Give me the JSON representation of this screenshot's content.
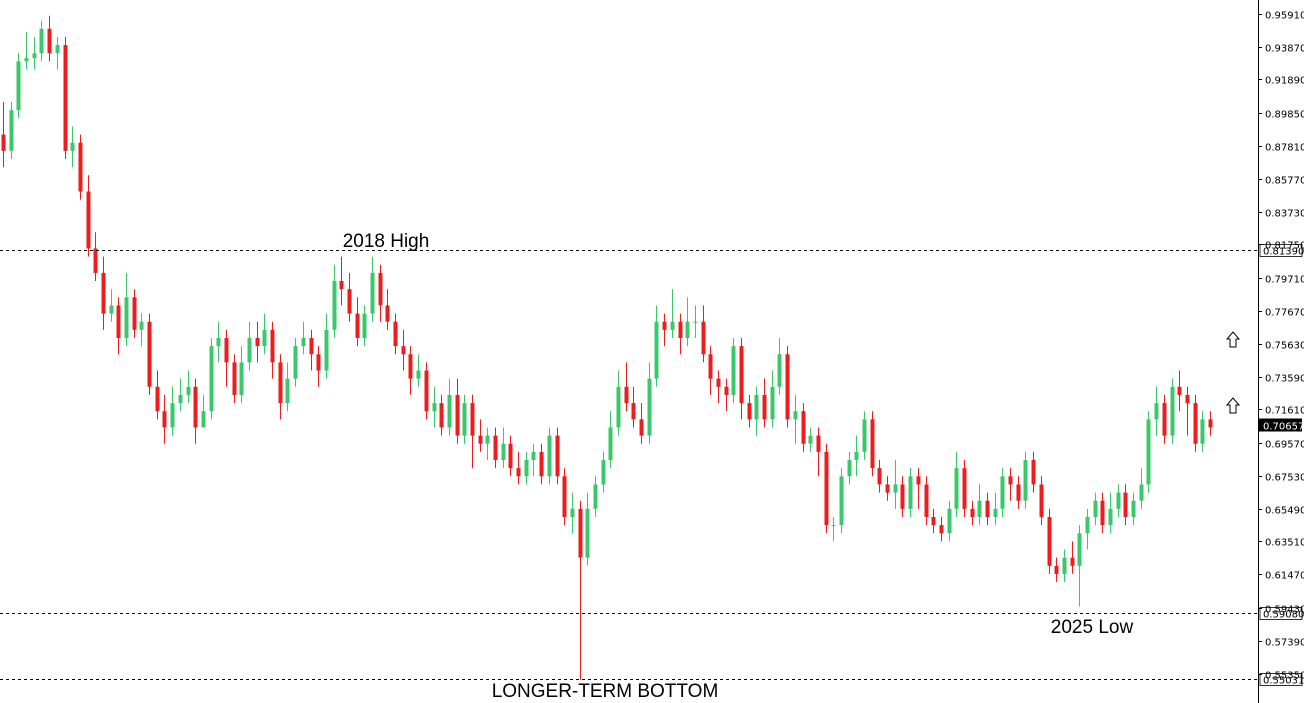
{
  "chart_data": {
    "type": "candlestick",
    "title": "",
    "xlabel": "",
    "ylabel": "",
    "ylim": [
      0.5475,
      0.963
    ],
    "grid": false,
    "y_ticks": [
      "0.95910",
      "0.93870",
      "0.91890",
      "0.89850",
      "0.87810",
      "0.85770",
      "0.83730",
      "0.81750",
      "0.79710",
      "0.77670",
      "0.75630",
      "0.73590",
      "0.71610",
      "0.69570",
      "0.67530",
      "0.65490",
      "0.63510",
      "0.61470",
      "0.59430",
      "0.57390",
      "0.55350"
    ],
    "levels": [
      {
        "name": "2018 High",
        "value": "0.81390",
        "price": 0.8139
      },
      {
        "name": "2025 Low",
        "value": "0.59080",
        "price": 0.5908
      },
      {
        "name": "LONGER-TERM BOTTOM",
        "value": "0.55031",
        "price": 0.55031
      }
    ],
    "current_price": {
      "value": "0.70657",
      "price": 0.70657
    },
    "annotations": [
      "2018 High",
      "2025 Low",
      "LONGER-TERM BOTTOM"
    ],
    "colors": {
      "up": "#3ac96a",
      "down": "#ee1c1c",
      "current_bg": "#000000",
      "current_fg": "#ffffff"
    },
    "icons": [
      "up-arrow-icon",
      "up-arrow-icon"
    ],
    "candles": [
      [
        0.885,
        0.875,
        0.905,
        0.865
      ],
      [
        0.875,
        0.9,
        0.905,
        0.87
      ],
      [
        0.9,
        0.93,
        0.935,
        0.895
      ],
      [
        0.93,
        0.932,
        0.948,
        0.925
      ],
      [
        0.932,
        0.935,
        0.945,
        0.925
      ],
      [
        0.935,
        0.95,
        0.955,
        0.93
      ],
      [
        0.95,
        0.935,
        0.958,
        0.93
      ],
      [
        0.935,
        0.94,
        0.945,
        0.925
      ],
      [
        0.94,
        0.875,
        0.945,
        0.87
      ],
      [
        0.875,
        0.88,
        0.89,
        0.865
      ],
      [
        0.88,
        0.85,
        0.885,
        0.845
      ],
      [
        0.85,
        0.815,
        0.86,
        0.81
      ],
      [
        0.815,
        0.8,
        0.825,
        0.795
      ],
      [
        0.8,
        0.775,
        0.81,
        0.765
      ],
      [
        0.775,
        0.78,
        0.79,
        0.77
      ],
      [
        0.78,
        0.76,
        0.785,
        0.75
      ],
      [
        0.76,
        0.785,
        0.8,
        0.755
      ],
      [
        0.785,
        0.765,
        0.79,
        0.76
      ],
      [
        0.765,
        0.77,
        0.775,
        0.755
      ],
      [
        0.77,
        0.73,
        0.775,
        0.725
      ],
      [
        0.73,
        0.715,
        0.74,
        0.71
      ],
      [
        0.715,
        0.705,
        0.725,
        0.695
      ],
      [
        0.705,
        0.72,
        0.73,
        0.7
      ],
      [
        0.72,
        0.725,
        0.735,
        0.715
      ],
      [
        0.725,
        0.73,
        0.74,
        0.72
      ],
      [
        0.73,
        0.705,
        0.735,
        0.695
      ],
      [
        0.705,
        0.715,
        0.725,
        0.71
      ],
      [
        0.715,
        0.755,
        0.76,
        0.71
      ],
      [
        0.755,
        0.76,
        0.77,
        0.745
      ],
      [
        0.76,
        0.745,
        0.765,
        0.73
      ],
      [
        0.745,
        0.725,
        0.75,
        0.72
      ],
      [
        0.725,
        0.745,
        0.755,
        0.72
      ],
      [
        0.745,
        0.76,
        0.77,
        0.74
      ],
      [
        0.76,
        0.755,
        0.77,
        0.745
      ],
      [
        0.755,
        0.765,
        0.775,
        0.75
      ],
      [
        0.765,
        0.745,
        0.77,
        0.735
      ],
      [
        0.745,
        0.72,
        0.75,
        0.71
      ],
      [
        0.72,
        0.735,
        0.745,
        0.715
      ],
      [
        0.735,
        0.755,
        0.76,
        0.73
      ],
      [
        0.755,
        0.76,
        0.77,
        0.75
      ],
      [
        0.76,
        0.75,
        0.765,
        0.74
      ],
      [
        0.75,
        0.74,
        0.755,
        0.73
      ],
      [
        0.74,
        0.765,
        0.775,
        0.735
      ],
      [
        0.765,
        0.795,
        0.805,
        0.76
      ],
      [
        0.795,
        0.79,
        0.81,
        0.78
      ],
      [
        0.79,
        0.775,
        0.8,
        0.77
      ],
      [
        0.775,
        0.76,
        0.785,
        0.755
      ],
      [
        0.76,
        0.775,
        0.78,
        0.755
      ],
      [
        0.775,
        0.8,
        0.81,
        0.77
      ],
      [
        0.8,
        0.78,
        0.805,
        0.77
      ],
      [
        0.78,
        0.77,
        0.79,
        0.765
      ],
      [
        0.77,
        0.755,
        0.775,
        0.75
      ],
      [
        0.755,
        0.75,
        0.765,
        0.74
      ],
      [
        0.75,
        0.735,
        0.755,
        0.725
      ],
      [
        0.735,
        0.74,
        0.75,
        0.73
      ],
      [
        0.74,
        0.715,
        0.745,
        0.71
      ],
      [
        0.715,
        0.72,
        0.73,
        0.705
      ],
      [
        0.72,
        0.705,
        0.725,
        0.7
      ],
      [
        0.705,
        0.725,
        0.735,
        0.7
      ],
      [
        0.725,
        0.7,
        0.735,
        0.695
      ],
      [
        0.7,
        0.72,
        0.725,
        0.695
      ],
      [
        0.72,
        0.7,
        0.725,
        0.68
      ],
      [
        0.7,
        0.695,
        0.71,
        0.69
      ],
      [
        0.695,
        0.7,
        0.705,
        0.685
      ],
      [
        0.7,
        0.685,
        0.705,
        0.68
      ],
      [
        0.685,
        0.695,
        0.705,
        0.68
      ],
      [
        0.695,
        0.68,
        0.7,
        0.675
      ],
      [
        0.68,
        0.675,
        0.69,
        0.67
      ],
      [
        0.675,
        0.685,
        0.69,
        0.67
      ],
      [
        0.685,
        0.69,
        0.695,
        0.675
      ],
      [
        0.69,
        0.675,
        0.695,
        0.67
      ],
      [
        0.675,
        0.7,
        0.705,
        0.67
      ],
      [
        0.7,
        0.675,
        0.705,
        0.67
      ],
      [
        0.675,
        0.65,
        0.68,
        0.645
      ],
      [
        0.65,
        0.655,
        0.665,
        0.64
      ],
      [
        0.655,
        0.625,
        0.66,
        0.55
      ],
      [
        0.625,
        0.655,
        0.665,
        0.62
      ],
      [
        0.655,
        0.67,
        0.675,
        0.65
      ],
      [
        0.67,
        0.685,
        0.69,
        0.665
      ],
      [
        0.685,
        0.705,
        0.715,
        0.68
      ],
      [
        0.705,
        0.73,
        0.74,
        0.7
      ],
      [
        0.73,
        0.72,
        0.745,
        0.715
      ],
      [
        0.72,
        0.71,
        0.73,
        0.705
      ],
      [
        0.71,
        0.7,
        0.72,
        0.695
      ],
      [
        0.7,
        0.735,
        0.745,
        0.695
      ],
      [
        0.735,
        0.77,
        0.78,
        0.73
      ],
      [
        0.77,
        0.765,
        0.775,
        0.755
      ],
      [
        0.765,
        0.77,
        0.79,
        0.76
      ],
      [
        0.77,
        0.76,
        0.775,
        0.75
      ],
      [
        0.76,
        0.77,
        0.785,
        0.755
      ],
      [
        0.77,
        0.77,
        0.78,
        0.76
      ],
      [
        0.77,
        0.75,
        0.78,
        0.745
      ],
      [
        0.75,
        0.735,
        0.755,
        0.725
      ],
      [
        0.735,
        0.73,
        0.74,
        0.72
      ],
      [
        0.73,
        0.725,
        0.735,
        0.715
      ],
      [
        0.725,
        0.755,
        0.76,
        0.72
      ],
      [
        0.755,
        0.72,
        0.76,
        0.71
      ],
      [
        0.72,
        0.71,
        0.725,
        0.705
      ],
      [
        0.71,
        0.725,
        0.73,
        0.7
      ],
      [
        0.725,
        0.71,
        0.735,
        0.705
      ],
      [
        0.71,
        0.73,
        0.74,
        0.705
      ],
      [
        0.73,
        0.75,
        0.76,
        0.725
      ],
      [
        0.75,
        0.71,
        0.755,
        0.705
      ],
      [
        0.71,
        0.715,
        0.725,
        0.695
      ],
      [
        0.715,
        0.695,
        0.72,
        0.69
      ],
      [
        0.695,
        0.7,
        0.705,
        0.69
      ],
      [
        0.7,
        0.69,
        0.705,
        0.675
      ],
      [
        0.69,
        0.645,
        0.695,
        0.64
      ],
      [
        0.645,
        0.645,
        0.65,
        0.635
      ],
      [
        0.645,
        0.675,
        0.68,
        0.64
      ],
      [
        0.675,
        0.685,
        0.69,
        0.67
      ],
      [
        0.685,
        0.69,
        0.7,
        0.675
      ],
      [
        0.69,
        0.71,
        0.715,
        0.685
      ],
      [
        0.71,
        0.68,
        0.715,
        0.675
      ],
      [
        0.68,
        0.67,
        0.685,
        0.665
      ],
      [
        0.67,
        0.665,
        0.675,
        0.66
      ],
      [
        0.665,
        0.67,
        0.685,
        0.655
      ],
      [
        0.67,
        0.655,
        0.675,
        0.65
      ],
      [
        0.655,
        0.675,
        0.68,
        0.65
      ],
      [
        0.675,
        0.67,
        0.68,
        0.655
      ],
      [
        0.67,
        0.65,
        0.675,
        0.645
      ],
      [
        0.65,
        0.645,
        0.655,
        0.64
      ],
      [
        0.645,
        0.64,
        0.65,
        0.635
      ],
      [
        0.64,
        0.655,
        0.66,
        0.635
      ],
      [
        0.655,
        0.68,
        0.69,
        0.65
      ],
      [
        0.68,
        0.655,
        0.685,
        0.65
      ],
      [
        0.655,
        0.65,
        0.66,
        0.645
      ],
      [
        0.65,
        0.66,
        0.67,
        0.645
      ],
      [
        0.66,
        0.65,
        0.665,
        0.645
      ],
      [
        0.65,
        0.655,
        0.665,
        0.645
      ],
      [
        0.655,
        0.675,
        0.68,
        0.65
      ],
      [
        0.675,
        0.67,
        0.68,
        0.66
      ],
      [
        0.67,
        0.66,
        0.675,
        0.655
      ],
      [
        0.66,
        0.685,
        0.69,
        0.655
      ],
      [
        0.685,
        0.67,
        0.69,
        0.665
      ],
      [
        0.67,
        0.65,
        0.675,
        0.645
      ],
      [
        0.65,
        0.62,
        0.655,
        0.615
      ],
      [
        0.62,
        0.615,
        0.625,
        0.61
      ],
      [
        0.615,
        0.625,
        0.63,
        0.61
      ],
      [
        0.625,
        0.62,
        0.635,
        0.615
      ],
      [
        0.62,
        0.64,
        0.645,
        0.595
      ],
      [
        0.64,
        0.65,
        0.655,
        0.63
      ],
      [
        0.65,
        0.66,
        0.665,
        0.645
      ],
      [
        0.66,
        0.645,
        0.665,
        0.64
      ],
      [
        0.645,
        0.655,
        0.665,
        0.64
      ],
      [
        0.655,
        0.665,
        0.67,
        0.65
      ],
      [
        0.665,
        0.65,
        0.67,
        0.645
      ],
      [
        0.65,
        0.66,
        0.665,
        0.645
      ],
      [
        0.66,
        0.67,
        0.68,
        0.655
      ],
      [
        0.67,
        0.71,
        0.715,
        0.665
      ],
      [
        0.71,
        0.72,
        0.73,
        0.7
      ],
      [
        0.72,
        0.7,
        0.725,
        0.695
      ],
      [
        0.7,
        0.73,
        0.735,
        0.695
      ],
      [
        0.73,
        0.725,
        0.74,
        0.715
      ],
      [
        0.725,
        0.72,
        0.73,
        0.7
      ],
      [
        0.72,
        0.695,
        0.725,
        0.69
      ],
      [
        0.695,
        0.71,
        0.715,
        0.69
      ],
      [
        0.71,
        0.705,
        0.715,
        0.7
      ]
    ]
  }
}
